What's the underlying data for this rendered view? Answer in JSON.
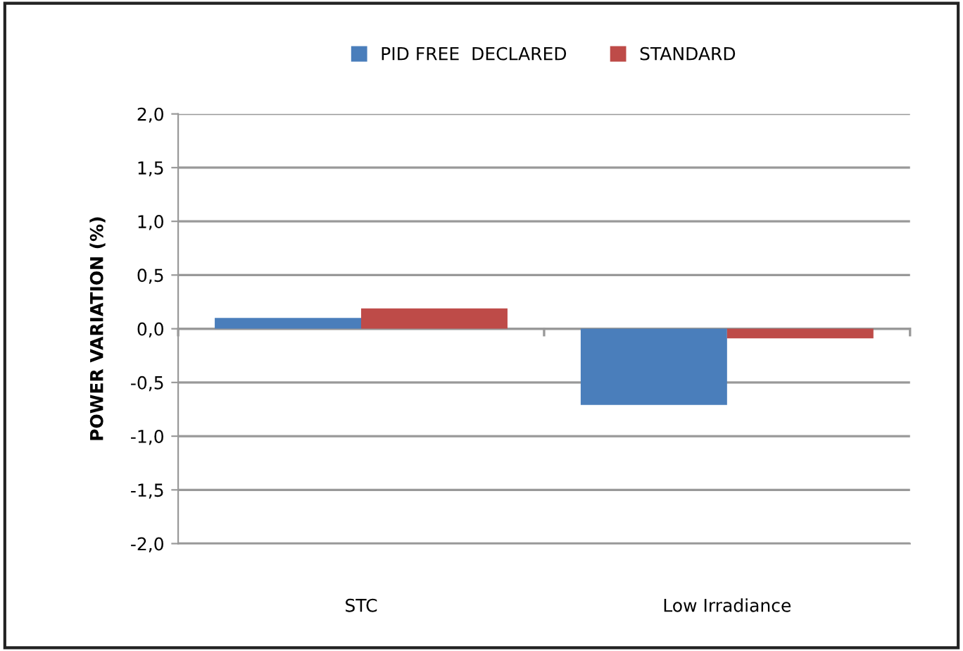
{
  "chart_data": {
    "type": "bar",
    "categories": [
      "STC",
      "Low Irradiance"
    ],
    "series": [
      {
        "name": "PID FREE  DECLARED",
        "color": "#4a7ebb",
        "values": [
          0.1,
          -0.71
        ]
      },
      {
        "name": "STANDARD",
        "color": "#be4b48",
        "values": [
          0.19,
          -0.09
        ]
      }
    ],
    "ylabel": "POWER VARIATION (%)",
    "ylim": [
      -2.0,
      2.0
    ],
    "yticks": [
      {
        "value": -2.0,
        "label": "-2,0"
      },
      {
        "value": -1.5,
        "label": "-1,5"
      },
      {
        "value": -1.0,
        "label": "-1,0"
      },
      {
        "value": -0.5,
        "label": "-0,5"
      },
      {
        "value": 0.0,
        "label": "0,0"
      },
      {
        "value": 0.5,
        "label": "0,5"
      },
      {
        "value": 1.0,
        "label": "1,0"
      },
      {
        "value": 1.5,
        "label": "1,5"
      },
      {
        "value": 2.0,
        "label": "2,0"
      }
    ],
    "grid": "y",
    "legend": "top"
  }
}
